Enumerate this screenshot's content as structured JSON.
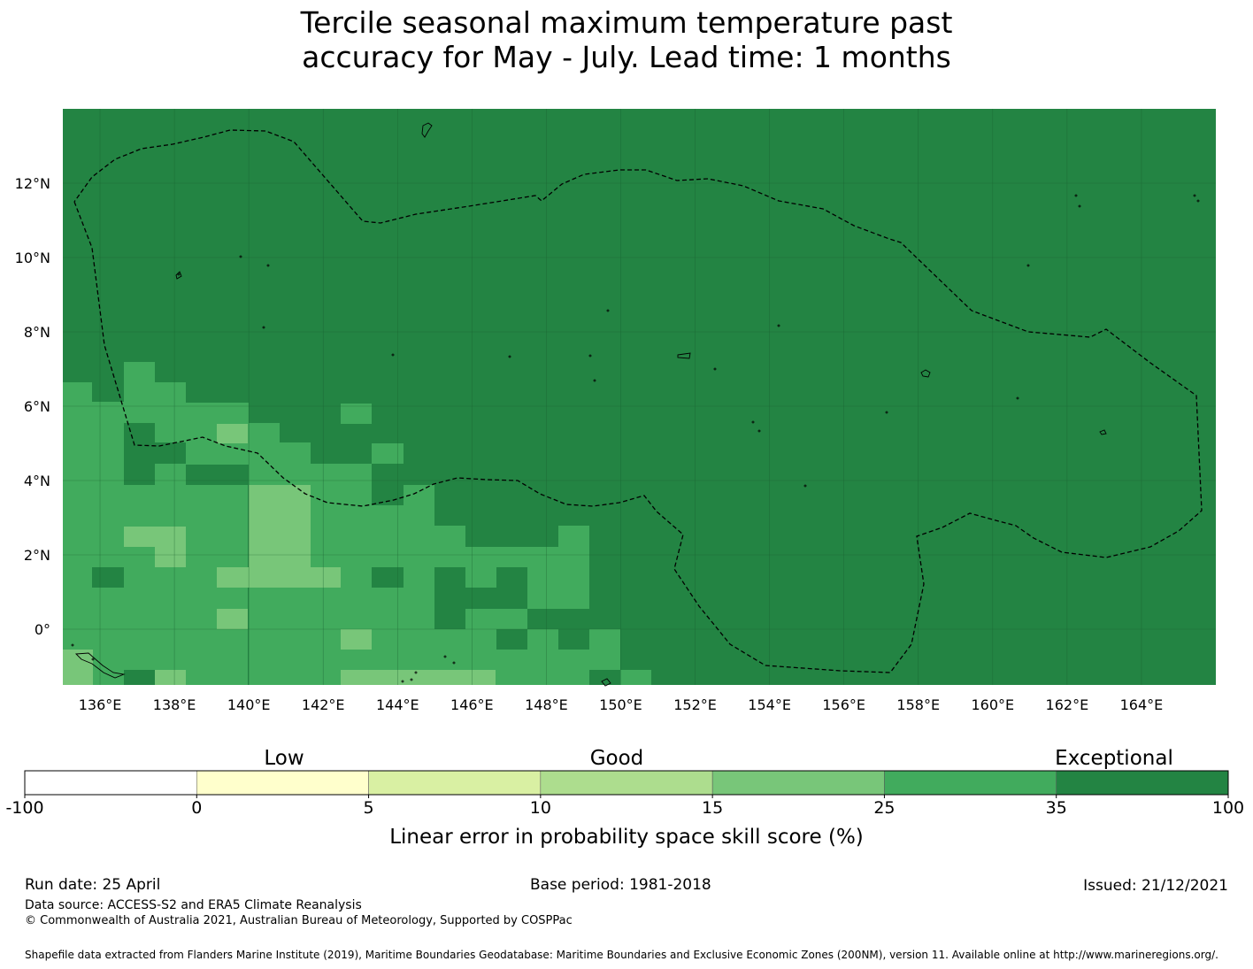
{
  "title": {
    "line1": "Tercile seasonal maximum temperature past",
    "line2": "accuracy for May - July. Lead time: 1 months"
  },
  "map": {
    "x_ticks": [
      "136°E",
      "138°E",
      "140°E",
      "142°E",
      "144°E",
      "146°E",
      "148°E",
      "150°E",
      "152°E",
      "154°E",
      "156°E",
      "158°E",
      "160°E",
      "162°E",
      "164°E"
    ],
    "y_ticks": [
      "12°N",
      "10°N",
      "8°N",
      "6°N",
      "4°N",
      "2°N",
      "0°"
    ],
    "lon_range": [
      135.0,
      166.0
    ],
    "lat_range": [
      -1.5,
      14.0
    ],
    "background_color": "#238443",
    "eez_boundary": "dashed",
    "categories": {
      "a": "#238443",
      "b": "#41ab5d",
      "c": "#78c679"
    }
  },
  "colorbar": {
    "category_labels": [
      "Low",
      "Good",
      "Exceptional"
    ],
    "bin_edges": [
      "-100",
      "0",
      "5",
      "10",
      "15",
      "25",
      "35",
      "100"
    ],
    "colors": [
      "#ffffff",
      "#ffffcc",
      "#d9f0a3",
      "#addd8e",
      "#78c679",
      "#41ab5d",
      "#238443"
    ],
    "label": "Linear error in probability space skill score (%)"
  },
  "footer": {
    "run_date": "Run date: 25 April",
    "base_period": "Base period: 1981-2018",
    "issued": "Issued: 21/12/2021",
    "data_source": "Data source: ACCESS-S2 and ERA5 Climate Reanalysis",
    "copyright": "© Commonwealth of Australia 2021, Australian Bureau of Meteorology, Supported by COSPPac",
    "shapefile": "Shapefile data extracted from Flanders Marine Institute (2019), Maritime Boundaries Geodatabase: Maritime Boundaries and Exclusive Economic Zones (200NM), version 11. Available online at http://www.marineregions.org/."
  }
}
